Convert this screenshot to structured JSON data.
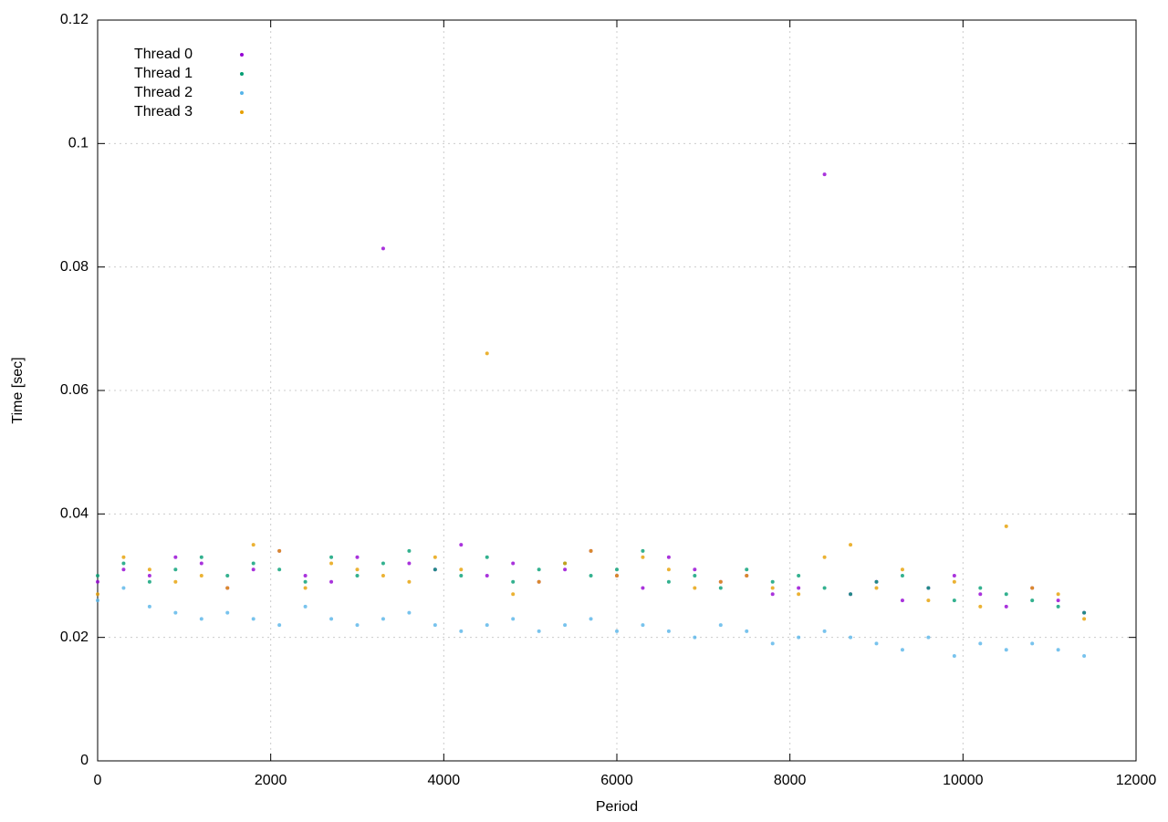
{
  "chart_data": {
    "type": "scatter",
    "xlabel": "Period",
    "ylabel": "Time [sec]",
    "xlim": [
      0,
      12000
    ],
    "ylim": [
      0,
      0.12
    ],
    "xticks": [
      0,
      2000,
      4000,
      6000,
      8000,
      10000,
      12000
    ],
    "yticks": [
      0,
      0.02,
      0.04,
      0.06,
      0.08,
      0.1,
      0.12
    ],
    "grid": true,
    "legend": "top-left",
    "x": [
      0,
      300,
      600,
      900,
      1200,
      1500,
      1800,
      2100,
      2400,
      2700,
      3000,
      3300,
      3600,
      3900,
      4200,
      4500,
      4800,
      5100,
      5400,
      5700,
      6000,
      6300,
      6600,
      6900,
      7200,
      7500,
      7800,
      8100,
      8400,
      8700,
      9000,
      9300,
      9600,
      9900,
      10200,
      10500,
      10800,
      11100,
      11400
    ],
    "series": [
      {
        "name": "Thread 0",
        "color": "#9400d3",
        "values": [
          0.029,
          0.031,
          0.03,
          0.033,
          0.032,
          0.028,
          0.031,
          0.034,
          0.03,
          0.029,
          0.033,
          0.083,
          0.032,
          0.031,
          0.035,
          0.03,
          0.032,
          0.029,
          0.031,
          0.034,
          0.03,
          0.028,
          0.033,
          0.031,
          0.029,
          0.03,
          0.027,
          0.028,
          0.095,
          0.027,
          0.029,
          0.026,
          0.028,
          0.03,
          0.027,
          0.025,
          0.028,
          0.026,
          0.024
        ]
      },
      {
        "name": "Thread 1",
        "color": "#009e73",
        "values": [
          0.03,
          0.032,
          0.029,
          0.031,
          0.033,
          0.03,
          0.032,
          0.031,
          0.029,
          0.033,
          0.03,
          0.032,
          0.034,
          0.031,
          0.03,
          0.033,
          0.029,
          0.031,
          0.032,
          0.03,
          0.031,
          0.034,
          0.029,
          0.03,
          0.028,
          0.031,
          0.029,
          0.03,
          0.028,
          0.027,
          0.029,
          0.03,
          0.028,
          0.026,
          0.028,
          0.027,
          0.026,
          0.025,
          0.024
        ]
      },
      {
        "name": "Thread 2",
        "color": "#56b4e9",
        "values": [
          0.026,
          0.028,
          0.025,
          0.024,
          0.023,
          0.024,
          0.023,
          0.022,
          0.025,
          0.023,
          0.022,
          0.023,
          0.024,
          0.022,
          0.021,
          0.022,
          0.023,
          0.021,
          0.022,
          0.023,
          0.021,
          0.022,
          0.021,
          0.02,
          0.022,
          0.021,
          0.019,
          0.02,
          0.021,
          0.02,
          0.019,
          0.018,
          0.02,
          0.017,
          0.019,
          0.018,
          0.019,
          0.018,
          0.017
        ]
      },
      {
        "name": "Thread 3",
        "color": "#e69f00",
        "values": [
          0.027,
          0.033,
          0.031,
          0.029,
          0.03,
          0.028,
          0.035,
          0.034,
          0.028,
          0.032,
          0.031,
          0.03,
          0.029,
          0.033,
          0.031,
          0.066,
          0.027,
          0.029,
          0.032,
          0.034,
          0.03,
          0.033,
          0.031,
          0.028,
          0.029,
          0.03,
          0.028,
          0.027,
          0.033,
          0.035,
          0.028,
          0.031,
          0.026,
          0.029,
          0.025,
          0.038,
          0.028,
          0.027,
          0.023
        ]
      }
    ]
  }
}
